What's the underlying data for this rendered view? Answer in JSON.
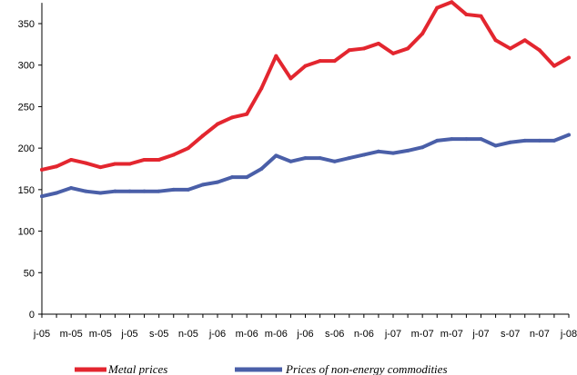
{
  "chart_data": {
    "type": "line",
    "x": [
      "j-05",
      "f-05",
      "m-05",
      "a-05",
      "m-05",
      "j-05",
      "j-05",
      "a-05",
      "s-05",
      "o-05",
      "n-05",
      "d-05",
      "j-06",
      "f-06",
      "m-06",
      "a-06",
      "m-06",
      "j-06",
      "j-06",
      "a-06",
      "s-06",
      "o-06",
      "n-06",
      "d-06",
      "j-07",
      "f-07",
      "m-07",
      "a-07",
      "m-07",
      "j-07",
      "j-07",
      "a-07",
      "s-07",
      "o-07",
      "n-07",
      "d-07",
      "j-08"
    ],
    "x_tick_labels": [
      "j-05",
      "m-05",
      "m-05",
      "j-05",
      "s-05",
      "n-05",
      "j-06",
      "m-06",
      "m-06",
      "j-06",
      "s-06",
      "n-06",
      "j-07",
      "m-07",
      "m-07",
      "j-07",
      "s-07",
      "n-07",
      "j-08"
    ],
    "y_ticks": [
      "0",
      "50",
      "100",
      "150",
      "200",
      "250",
      "300",
      "350"
    ],
    "ylim": [
      0,
      375
    ],
    "grid": false,
    "legend_position": "bottom",
    "series": [
      {
        "name": "Metal prices",
        "color": "#e3262f",
        "values": [
          174,
          178,
          186,
          182,
          177,
          181,
          181,
          186,
          186,
          192,
          200,
          215,
          229,
          237,
          241,
          272,
          311,
          284,
          299,
          305,
          305,
          318,
          320,
          326,
          314,
          320,
          338,
          369,
          376,
          361,
          359,
          330,
          320,
          330,
          318,
          299,
          309
        ]
      },
      {
        "name": "Prices of non-energy commodities",
        "color": "#4a5fa8",
        "values": [
          142,
          146,
          152,
          148,
          146,
          148,
          148,
          148,
          148,
          150,
          150,
          156,
          159,
          165,
          165,
          175,
          191,
          184,
          188,
          188,
          184,
          188,
          192,
          196,
          194,
          197,
          201,
          209,
          211,
          211,
          211,
          203,
          207,
          209,
          209,
          209,
          216
        ]
      }
    ]
  }
}
